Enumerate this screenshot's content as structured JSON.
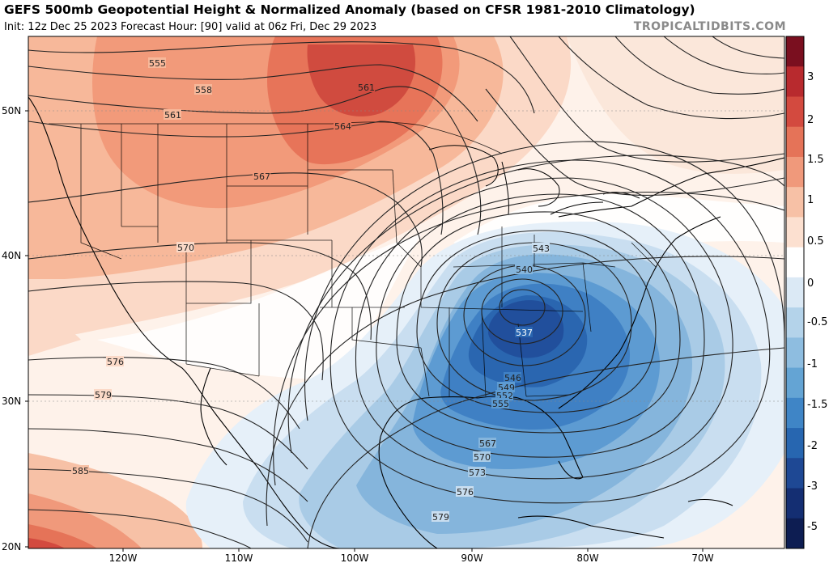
{
  "header": {
    "title": "GEFS 500mb Geopotential Height & Normalized Anomaly (based on CFSR 1981-2010 Climatology)",
    "subtitle": "Init: 12z Dec 25 2023   Forecast Hour: [90]   valid at 06z Fri, Dec 29 2023",
    "site": "TROPICALTIDBITS.COM"
  },
  "map": {
    "lat_labels": [
      "50N",
      "40N",
      "30N",
      "20N"
    ],
    "lon_labels": [
      "120W",
      "110W",
      "100W",
      "90W",
      "80W",
      "70W"
    ],
    "contour_labels": [
      "555",
      "558",
      "561",
      "564",
      "567",
      "570",
      "576",
      "579",
      "585",
      "543",
      "540",
      "537",
      "546",
      "549",
      "552",
      "555",
      "567",
      "570",
      "573",
      "576",
      "579",
      "561"
    ],
    "colorbar": {
      "ticks": [
        "3",
        "2",
        "1.5",
        "1",
        "0.5",
        "0",
        "-0.5",
        "-1",
        "-1.5",
        "-2",
        "-3",
        "-5"
      ],
      "colors": [
        "#7a0f1f",
        "#b82a2e",
        "#d34a3f",
        "#e57358",
        "#f0997b",
        "#f7c1a6",
        "#fce0d0",
        "#ffffff",
        "#dbe9f5",
        "#b4d3ea",
        "#8ebde0",
        "#64a4d4",
        "#3f85c6",
        "#2766b0",
        "#1e4894",
        "#142e72",
        "#0d1d52"
      ]
    }
  }
}
